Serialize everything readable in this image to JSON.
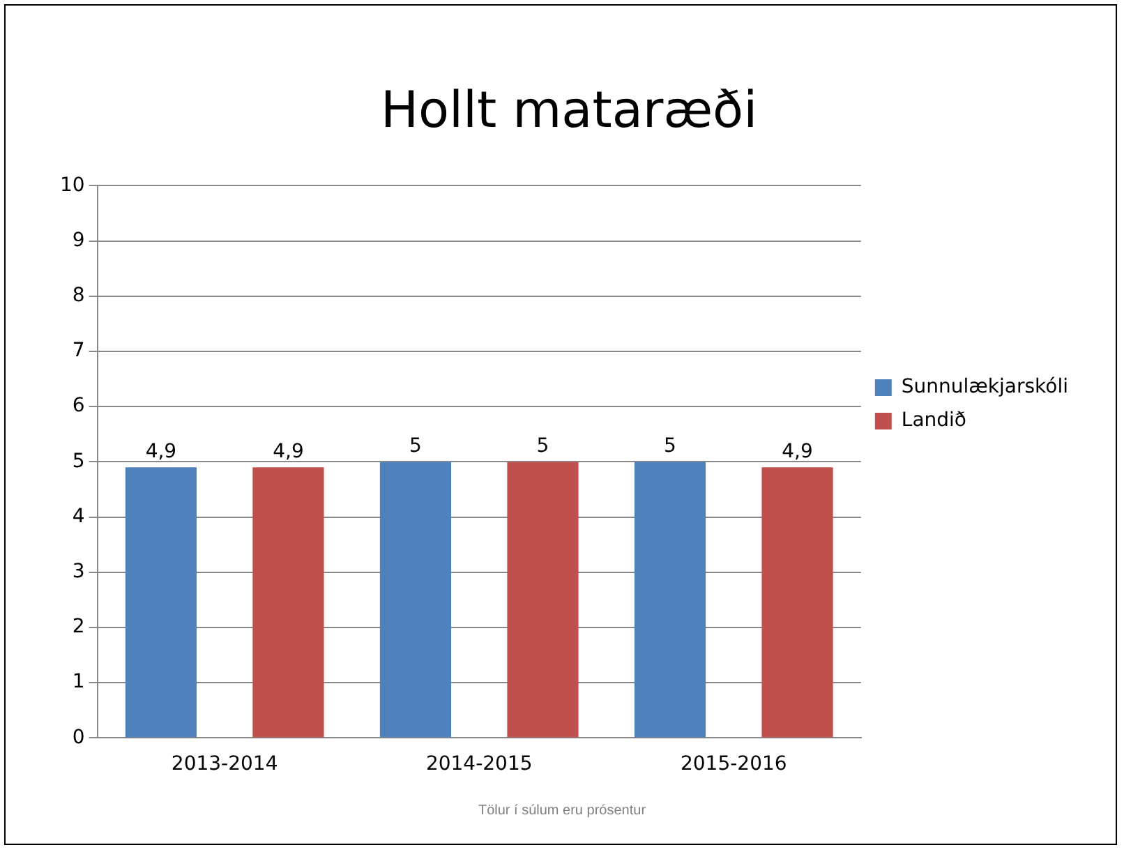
{
  "chart_data": {
    "type": "bar",
    "title": "Hollt mataræði",
    "categories": [
      "2013-2014",
      "2014-2015",
      "2015-2016"
    ],
    "series": [
      {
        "name": "Sunnulækjarskóli",
        "color": "#4f81bd",
        "values": [
          4.9,
          5,
          5
        ],
        "value_labels": [
          "4,9",
          "5",
          "5"
        ]
      },
      {
        "name": "Landið",
        "color": "#c0504d",
        "values": [
          4.9,
          5,
          4.9
        ],
        "value_labels": [
          "4,9",
          "5",
          "4,9"
        ]
      }
    ],
    "ylim": [
      0,
      10
    ],
    "yticks": [
      0,
      1,
      2,
      3,
      4,
      5,
      6,
      7,
      8,
      9,
      10
    ],
    "grid": "y",
    "legend": "right",
    "annotations": [
      "Tölur í súlum eru prósentur"
    ]
  }
}
